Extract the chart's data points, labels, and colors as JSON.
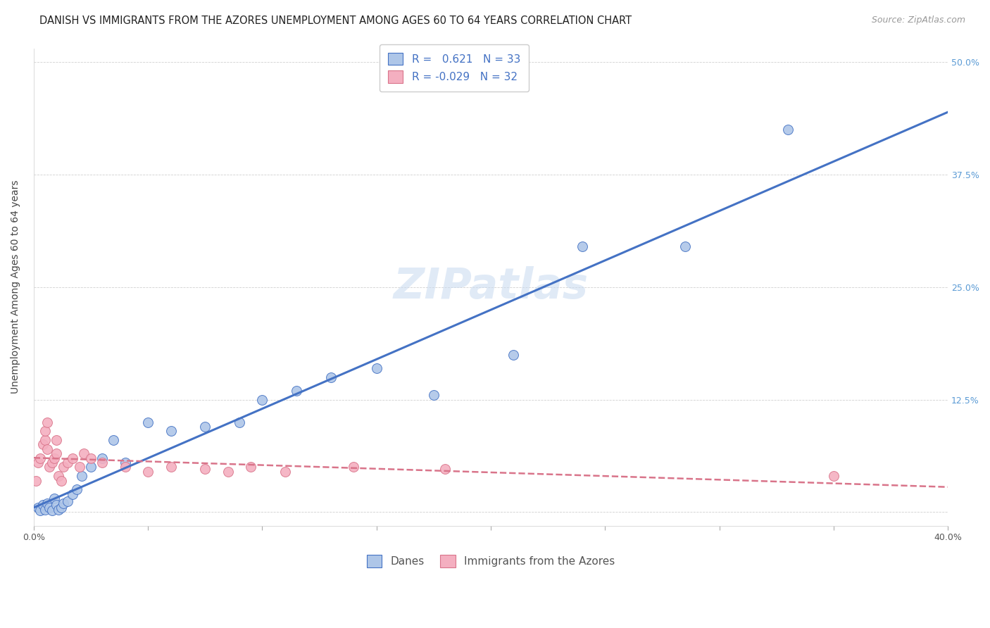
{
  "title": "DANISH VS IMMIGRANTS FROM THE AZORES UNEMPLOYMENT AMONG AGES 60 TO 64 YEARS CORRELATION CHART",
  "source": "Source: ZipAtlas.com",
  "ylabel": "Unemployment Among Ages 60 to 64 years",
  "xlabel_danes": "Danes",
  "xlabel_immigrants": "Immigrants from the Azores",
  "xlim": [
    0.0,
    0.4
  ],
  "ylim": [
    -0.015,
    0.515
  ],
  "xticks": [
    0.0,
    0.05,
    0.1,
    0.15,
    0.2,
    0.25,
    0.3,
    0.35,
    0.4
  ],
  "xticklabels": [
    "0.0%",
    "",
    "",
    "",
    "",
    "",
    "",
    "",
    "40.0%"
  ],
  "yticks": [
    0.0,
    0.125,
    0.25,
    0.375,
    0.5
  ],
  "yticklabels_right": [
    "",
    "12.5%",
    "25.0%",
    "37.5%",
    "50.0%"
  ],
  "r_danes": 0.621,
  "n_danes": 33,
  "r_immigrants": -0.029,
  "n_immigrants": 32,
  "danes_color": "#aec6e8",
  "immigrants_color": "#f4afc0",
  "danes_line_color": "#4472c4",
  "immigrants_line_color": "#d9748a",
  "danes_x": [
    0.002,
    0.003,
    0.004,
    0.005,
    0.006,
    0.007,
    0.008,
    0.009,
    0.01,
    0.011,
    0.012,
    0.013,
    0.015,
    0.017,
    0.019,
    0.021,
    0.025,
    0.03,
    0.035,
    0.04,
    0.05,
    0.06,
    0.075,
    0.09,
    0.1,
    0.115,
    0.13,
    0.15,
    0.175,
    0.21,
    0.24,
    0.285,
    0.33
  ],
  "danes_y": [
    0.005,
    0.002,
    0.008,
    0.003,
    0.01,
    0.005,
    0.002,
    0.015,
    0.008,
    0.003,
    0.005,
    0.01,
    0.012,
    0.02,
    0.025,
    0.04,
    0.05,
    0.06,
    0.08,
    0.055,
    0.1,
    0.09,
    0.095,
    0.1,
    0.125,
    0.135,
    0.15,
    0.16,
    0.13,
    0.175,
    0.295,
    0.295,
    0.425
  ],
  "immigrants_x": [
    0.001,
    0.002,
    0.003,
    0.004,
    0.005,
    0.005,
    0.006,
    0.006,
    0.007,
    0.008,
    0.009,
    0.01,
    0.01,
    0.011,
    0.012,
    0.013,
    0.015,
    0.017,
    0.02,
    0.022,
    0.025,
    0.03,
    0.04,
    0.05,
    0.06,
    0.075,
    0.085,
    0.095,
    0.11,
    0.14,
    0.18,
    0.35
  ],
  "immigrants_y": [
    0.035,
    0.055,
    0.06,
    0.075,
    0.08,
    0.09,
    0.07,
    0.1,
    0.05,
    0.055,
    0.06,
    0.065,
    0.08,
    0.04,
    0.035,
    0.05,
    0.055,
    0.06,
    0.05,
    0.065,
    0.06,
    0.055,
    0.05,
    0.045,
    0.05,
    0.048,
    0.045,
    0.05,
    0.045,
    0.05,
    0.048,
    0.04
  ],
  "title_fontsize": 10.5,
  "source_fontsize": 9,
  "axis_label_fontsize": 10,
  "tick_fontsize": 9,
  "legend_fontsize": 11
}
